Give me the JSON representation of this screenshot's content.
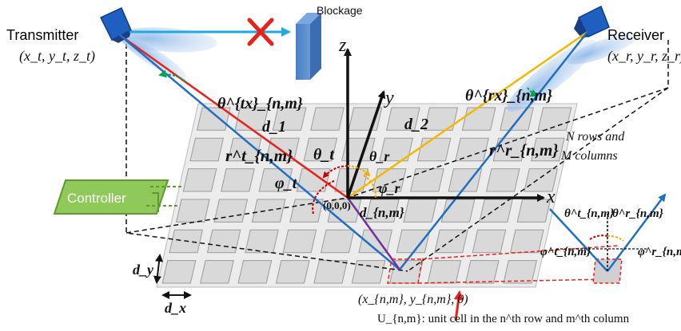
{
  "labels": {
    "transmitter": "Transmitter",
    "transmitter_coords": "(x_t, y_t, z_t)",
    "receiver": "Receiver",
    "receiver_coords": "(x_r, y_r, z_r)",
    "blockage": "Blockage",
    "controller": "Controller",
    "rows_cols_line1": "N rows and",
    "rows_cols_line2": "M columns",
    "origin": "(0,0,0)",
    "cell_coords": "(x_{n,m}, y_{n,m}, 0)",
    "unit_cell_desc": "U_{n,m}: unit cell in the n^th row and m^th column",
    "axis_x": "x",
    "axis_y": "y",
    "axis_z": "z",
    "d1": "d_1",
    "d2": "d_2",
    "dnm": "d_{n,m}",
    "r_t": "r^t_{n,m}",
    "r_r": "r^r_{n,m}",
    "theta_tx": "θ^{tx}_{n,m}",
    "theta_rx": "θ^{rx}_{n,m}",
    "theta_t": "θ_t",
    "theta_r": "θ_r",
    "phi_t": "φ_t",
    "phi_r": "φ_r",
    "inset_theta_t": "θ^t_{n,m}",
    "inset_theta_r": "θ^r_{n,m}",
    "inset_phi_t": "φ^t_{n,m}",
    "inset_phi_r": "φ^r_{n,m}",
    "dx": "d_x",
    "dy": "d_y"
  },
  "colors": {
    "d1_line": "#e8221b",
    "d2_line": "#f5b800",
    "r_lines": "#1f6fc4",
    "dnm_line": "#7030a0",
    "theta_tx": "#00a651",
    "controller_fill": "#8fc95a",
    "blockage_fill": "#5b8fd1",
    "los_arrow": "#1fa9e1",
    "angle_t": "#c00000",
    "angle_r": "#f5a800",
    "cell_fill": "#d9d9d9"
  },
  "grid": {
    "rows": 6,
    "cols": 10
  }
}
